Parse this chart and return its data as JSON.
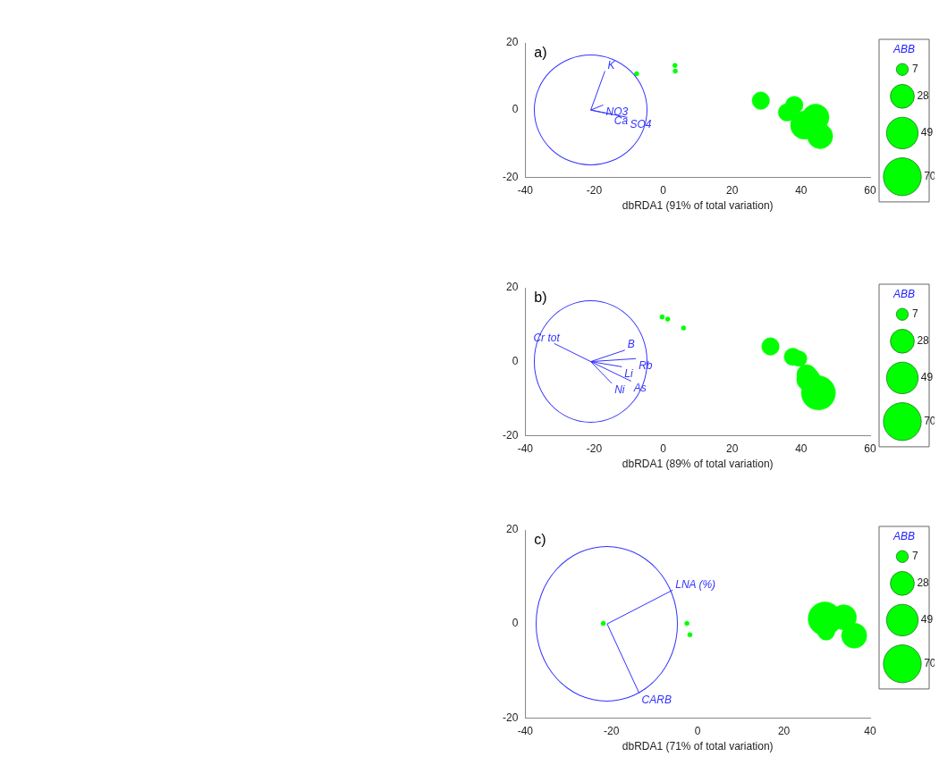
{
  "chart_data": [
    {
      "type": "bubble",
      "title": "a)",
      "xlabel": "dbRDA1 (91% of total variation)",
      "xlim": [
        -40,
        60
      ],
      "xticks": [
        -40,
        -20,
        0,
        20,
        40,
        60
      ],
      "ylim": [
        -20,
        20
      ],
      "yticks": [
        -20,
        0,
        20
      ],
      "legend_title": "ABB",
      "size_legend": [
        7,
        28,
        49,
        70
      ],
      "series": [
        {
          "type": "bubble",
          "color": "#00ff00",
          "x": [
            -7.7,
            3.4,
            3.5,
            28.3,
            35.9,
            38.0,
            41.0,
            44.2,
            45.5
          ],
          "values": [
            10.8,
            13.3,
            11.6,
            2.8,
            -0.7,
            1.5,
            -4.5,
            -2.2,
            -7.8
          ],
          "sizes": [
            1,
            1,
            1,
            15,
            15,
            15,
            39,
            35,
            31
          ]
        },
        {
          "type": "line",
          "name": "K",
          "color": "#3333ff",
          "x": [
            -21,
            -16.9
          ],
          "values": [
            0,
            11.6
          ]
        },
        {
          "type": "line",
          "name": "NO3",
          "color": "#3333ff",
          "x": [
            -21,
            -17.4
          ],
          "values": [
            0,
            1.5
          ]
        },
        {
          "type": "line",
          "name": "Ca",
          "color": "#3333ff",
          "x": [
            -21,
            -15
          ],
          "values": [
            0,
            -1.3
          ]
        },
        {
          "type": "line",
          "name": "SO4",
          "color": "#3333ff",
          "x": [
            -21,
            -10.4
          ],
          "values": [
            0,
            -2.2
          ]
        }
      ]
    },
    {
      "type": "bubble",
      "title": "b)",
      "xlabel": "dbRDA1 (89% of total variation)",
      "xlim": [
        -40,
        60
      ],
      "xticks": [
        -40,
        -20,
        0,
        20,
        40,
        60
      ],
      "ylim": [
        -20,
        20
      ],
      "yticks": [
        -20,
        0,
        20
      ],
      "legend_title": "ABB",
      "size_legend": [
        7,
        28,
        49,
        70
      ],
      "series": [
        {
          "type": "bubble",
          "color": "#00ff00",
          "x": [
            -0.3,
            1.3,
            5.9,
            31.1,
            39.4,
            37.6,
            45.0,
            42.1,
            41.6
          ],
          "values": [
            12.1,
            11.5,
            9.1,
            4.1,
            0.8,
            1.3,
            -8.5,
            -4.8,
            -3.5
          ],
          "sizes": [
            1,
            1,
            1,
            15,
            12,
            15,
            57,
            27,
            19
          ]
        },
        {
          "type": "line",
          "name": "Cr tot",
          "color": "#3333ff",
          "x": [
            -21,
            -31.6
          ],
          "values": [
            0,
            4.9
          ]
        },
        {
          "type": "line",
          "name": "B",
          "color": "#3333ff",
          "x": [
            -21,
            -11.1
          ],
          "values": [
            0,
            3.1
          ]
        },
        {
          "type": "line",
          "name": "Rb",
          "color": "#3333ff",
          "x": [
            -21,
            -7.9
          ],
          "values": [
            0,
            0.8
          ]
        },
        {
          "type": "line",
          "name": "Li",
          "color": "#3333ff",
          "x": [
            -21,
            -12
          ],
          "values": [
            0,
            -1.4
          ]
        },
        {
          "type": "line",
          "name": "As",
          "color": "#3333ff",
          "x": [
            -21,
            -9.3
          ],
          "values": [
            0,
            -5.3
          ]
        },
        {
          "type": "line",
          "name": "Ni",
          "color": "#3333ff",
          "x": [
            -21,
            -14.9
          ],
          "values": [
            0,
            -5.9
          ]
        }
      ]
    },
    {
      "type": "bubble",
      "title": "c)",
      "xlabel": "dbRDA1 (71% of total variation)",
      "xlim": [
        -40,
        40
      ],
      "xticks": [
        -40,
        -20,
        0,
        20,
        40
      ],
      "ylim": [
        -20,
        20
      ],
      "yticks": [
        -20,
        0,
        20
      ],
      "legend_title": "ABB",
      "size_legend": [
        7,
        28,
        49,
        70
      ],
      "series": [
        {
          "type": "bubble",
          "color": "#00ff00",
          "x": [
            -21.9,
            -2.5,
            -1.8,
            29.5,
            33.9,
            29.8,
            36.3
          ],
          "values": [
            0.1,
            0.1,
            -2.3,
            1.1,
            1.4,
            -1.6,
            -2.5
          ],
          "sizes": [
            1,
            1,
            1,
            55,
            31,
            15,
            31
          ]
        },
        {
          "type": "line",
          "name": "LNA (%)",
          "color": "#3333ff",
          "x": [
            -21,
            -5.8
          ],
          "values": [
            0,
            7.2
          ]
        },
        {
          "type": "line",
          "name": "CARB",
          "color": "#3333ff",
          "x": [
            -21,
            -13.6
          ],
          "values": [
            0,
            -14.7
          ]
        }
      ]
    }
  ]
}
